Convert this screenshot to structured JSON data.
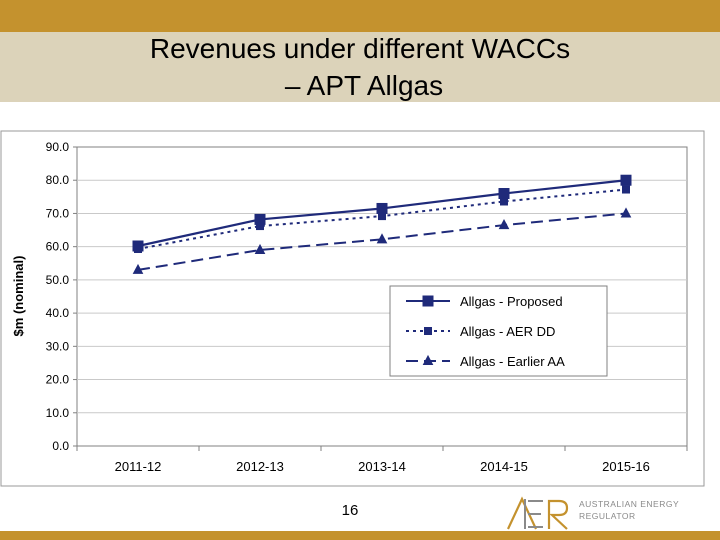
{
  "slide": {
    "title_line1": "Revenues under different WACCs",
    "title_line2": "– APT Allgas",
    "page_number": "16",
    "logo": {
      "mark": "AER",
      "name_line1": "AUSTRALIAN ENERGY",
      "name_line2": "REGULATOR"
    },
    "colors": {
      "top_bar": "#c4922e",
      "title_band": "#dcd3ba",
      "bottom_bar": "#c4922e"
    }
  },
  "chart_data": {
    "type": "line",
    "title": "",
    "xlabel": "",
    "ylabel": "$m (nominal)",
    "categories": [
      "2011-12",
      "2012-13",
      "2013-14",
      "2014-15",
      "2015-16"
    ],
    "ylim": [
      0,
      90
    ],
    "yticks": [
      "0.0",
      "10.0",
      "20.0",
      "30.0",
      "40.0",
      "50.0",
      "60.0",
      "70.0",
      "80.0",
      "90.0"
    ],
    "grid": "horizontal",
    "legend_position": "lower-right",
    "series": [
      {
        "name": "Allgas - Proposed",
        "values": [
          60.2,
          68.2,
          71.5,
          76.0,
          80.0
        ],
        "color": "#1f2a7a",
        "line": "solid",
        "marker": "square"
      },
      {
        "name": "Allgas - AER DD",
        "values": [
          59.3,
          66.2,
          69.2,
          73.6,
          77.2
        ],
        "color": "#1f2a7a",
        "line": "dotted",
        "marker": "small-square"
      },
      {
        "name": "Allgas - Earlier AA",
        "values": [
          53.0,
          59.0,
          62.2,
          66.5,
          70.0
        ],
        "color": "#1f2a7a",
        "line": "dashed",
        "marker": "triangle"
      }
    ]
  }
}
